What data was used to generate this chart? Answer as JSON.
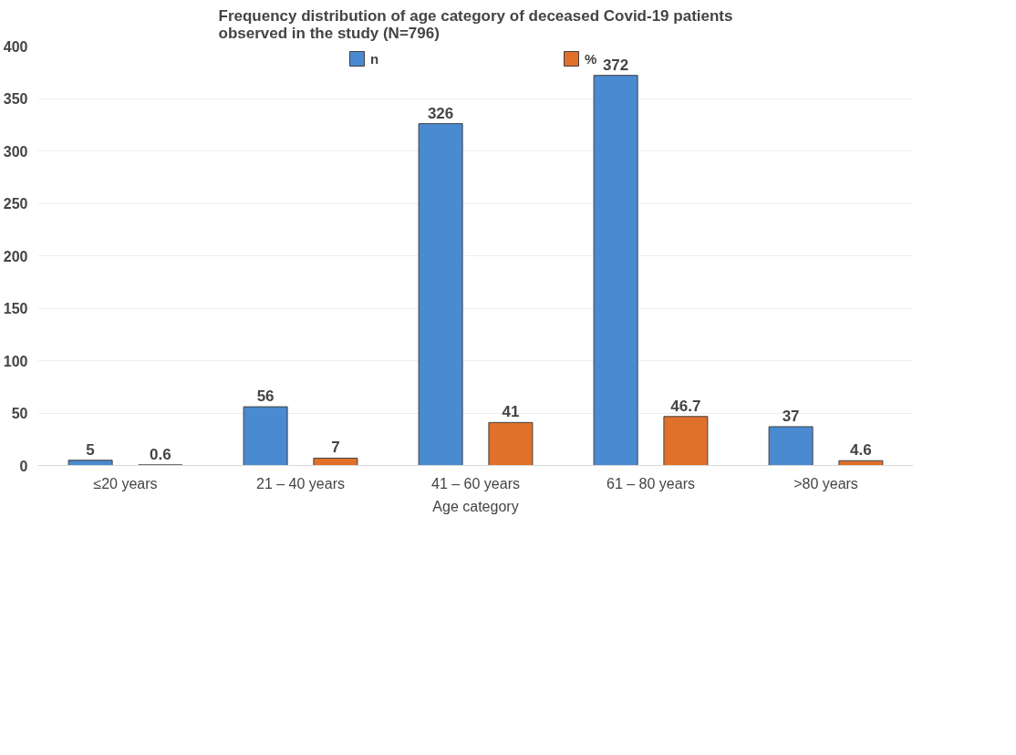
{
  "chart_data": {
    "type": "bar",
    "title": "Frequency distribution of age category of deceased Covid-19 patients observed in the study (N=796)",
    "xlabel": "Age category",
    "categories": [
      "≤20 years",
      "21 – 40 years",
      "41 – 60 years",
      "61 – 80 years",
      ">80 years"
    ],
    "series": [
      {
        "name": "n",
        "color": "#4a8ad0",
        "values": [
          5,
          56,
          326,
          372,
          37
        ]
      },
      {
        "name": "%",
        "color": "#e0702a",
        "values": [
          0.6,
          7,
          41,
          46.7,
          4.6
        ]
      }
    ],
    "ylim": [
      0,
      400
    ],
    "yticks": [
      0,
      50,
      100,
      150,
      200,
      250,
      300,
      350,
      400
    ],
    "grid": "y",
    "legend": "top",
    "data_labels": true
  }
}
